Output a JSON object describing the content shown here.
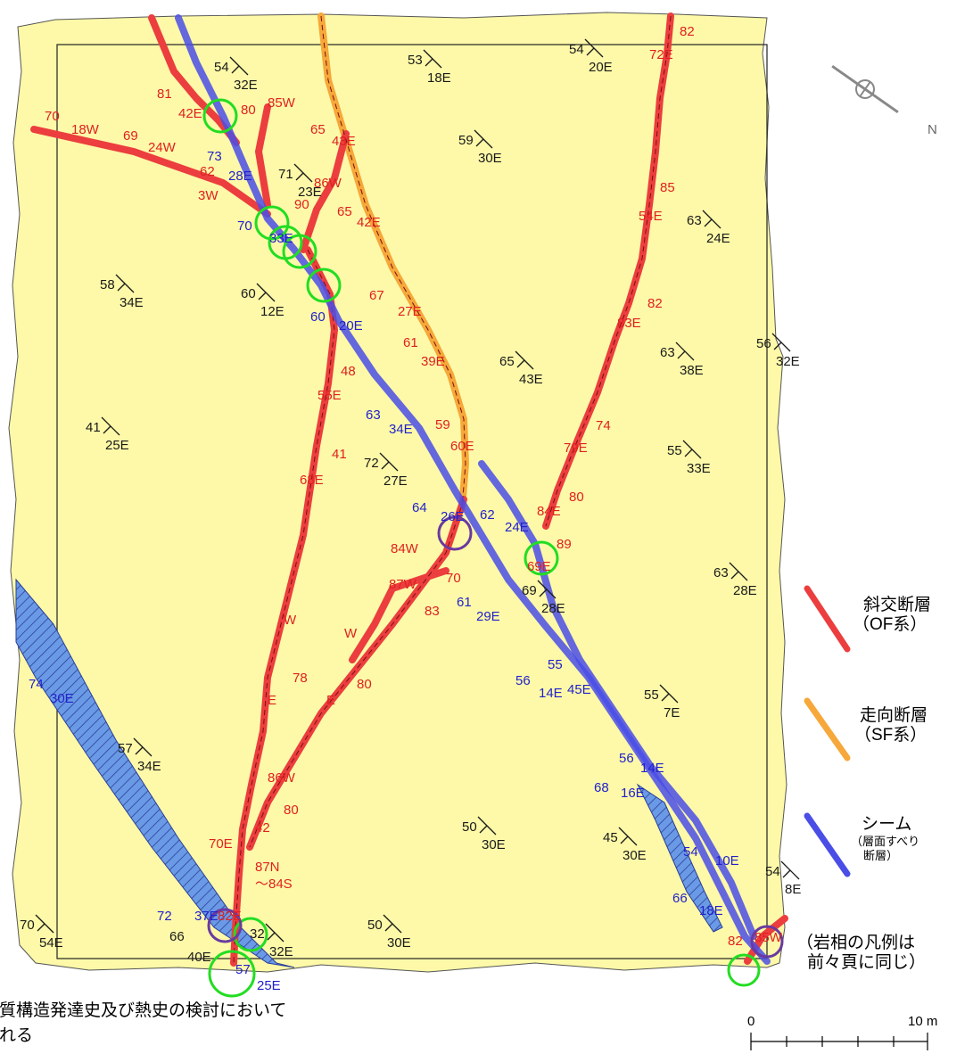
{
  "colors": {
    "background_sheet": "#fdf9a8",
    "fault_oblique": "#ec3e3e",
    "fault_strike": "#f6a83a",
    "seam": "#4a4ee6",
    "black_text": "#1a1a1a",
    "red_text": "#e02020",
    "blue_text": "#2222cc",
    "green_circle": "#22dd22",
    "purple_circle": "#6a3aa0",
    "hatch_fill": "#6a9ae6"
  },
  "north_arrow": {
    "icon": "north-arrow-icon",
    "label": "N"
  },
  "legend": {
    "oblique": {
      "title": "斜交断層",
      "sub": "（OF系）"
    },
    "strike": {
      "title": "走向断層",
      "sub": "（SF系）"
    },
    "seam": {
      "title": "シーム",
      "sub1": "（層面すべり",
      "sub2": "断層）"
    },
    "lithology_note_1": "（岩相の凡例は",
    "lithology_note_2": "前々頁に同じ）"
  },
  "caption": {
    "line1": "地質構造発達史及び熱史の検討において",
    "line2": "される"
  },
  "scale_bar": {
    "zero": "0",
    "max": "10 m"
  },
  "bedding": [
    {
      "dip": "54",
      "dir": "32E"
    },
    {
      "dip": "53",
      "dir": "18E"
    },
    {
      "dip": "54",
      "dir": "20E"
    },
    {
      "dip": "59",
      "dir": "30E"
    },
    {
      "dip": "71",
      "dir": "23E"
    },
    {
      "dip": "63",
      "dir": "24E"
    },
    {
      "dip": "58",
      "dir": "34E"
    },
    {
      "dip": "60",
      "dir": "12E"
    },
    {
      "dip": "65",
      "dir": "43E"
    },
    {
      "dip": "63",
      "dir": "38E"
    },
    {
      "dip": "56",
      "dir": "32E"
    },
    {
      "dip": "41",
      "dir": "25E"
    },
    {
      "dip": "72",
      "dir": "27E"
    },
    {
      "dip": "55",
      "dir": "33E"
    },
    {
      "dip": "69",
      "dir": "28E"
    },
    {
      "dip": "63",
      "dir": "28E"
    },
    {
      "dip": "55",
      "dir": "7E"
    },
    {
      "dip": "57",
      "dir": "34E"
    },
    {
      "dip": "50",
      "dir": "30E"
    },
    {
      "dip": "45",
      "dir": "30E"
    },
    {
      "dip": "54",
      "dir": "8E"
    },
    {
      "dip": "70",
      "dir": "54E"
    },
    {
      "dip": "50",
      "dir": "30E"
    },
    {
      "dip": "32",
      "dir": "32E"
    }
  ],
  "red_labels": [
    "82",
    "72E",
    "81",
    "42E",
    "80",
    "85W",
    "70",
    "18W",
    "69",
    "24W",
    "62",
    "3W",
    "65",
    "43E",
    "86W",
    "90",
    "65",
    "42E",
    "85",
    "54E",
    "82",
    "83E",
    "67",
    "27E",
    "61",
    "39E",
    "48",
    "55E",
    "74",
    "79E",
    "41",
    "68E",
    "59",
    "60E",
    "80",
    "84E",
    "89",
    "69E",
    "84W",
    "70",
    "87W",
    "83",
    "W",
    "78",
    "E",
    "W",
    "80",
    "E",
    "86W",
    "80",
    "42",
    "70E",
    "87N",
    "～84S",
    "82E",
    "85W",
    "82"
  ],
  "blue_labels": [
    "73",
    "28E",
    "70",
    "33E",
    "60",
    "20E",
    "63",
    "34E",
    "64",
    "26E",
    "62",
    "24E",
    "61",
    "29E",
    "55",
    "45E",
    "56",
    "14E",
    "56",
    "14E",
    "68",
    "16E",
    "54",
    "10E",
    "66",
    "18E",
    "74",
    "30E",
    "72",
    "37E",
    "57",
    "25E"
  ],
  "black_labels": [
    "66",
    "40E"
  ]
}
